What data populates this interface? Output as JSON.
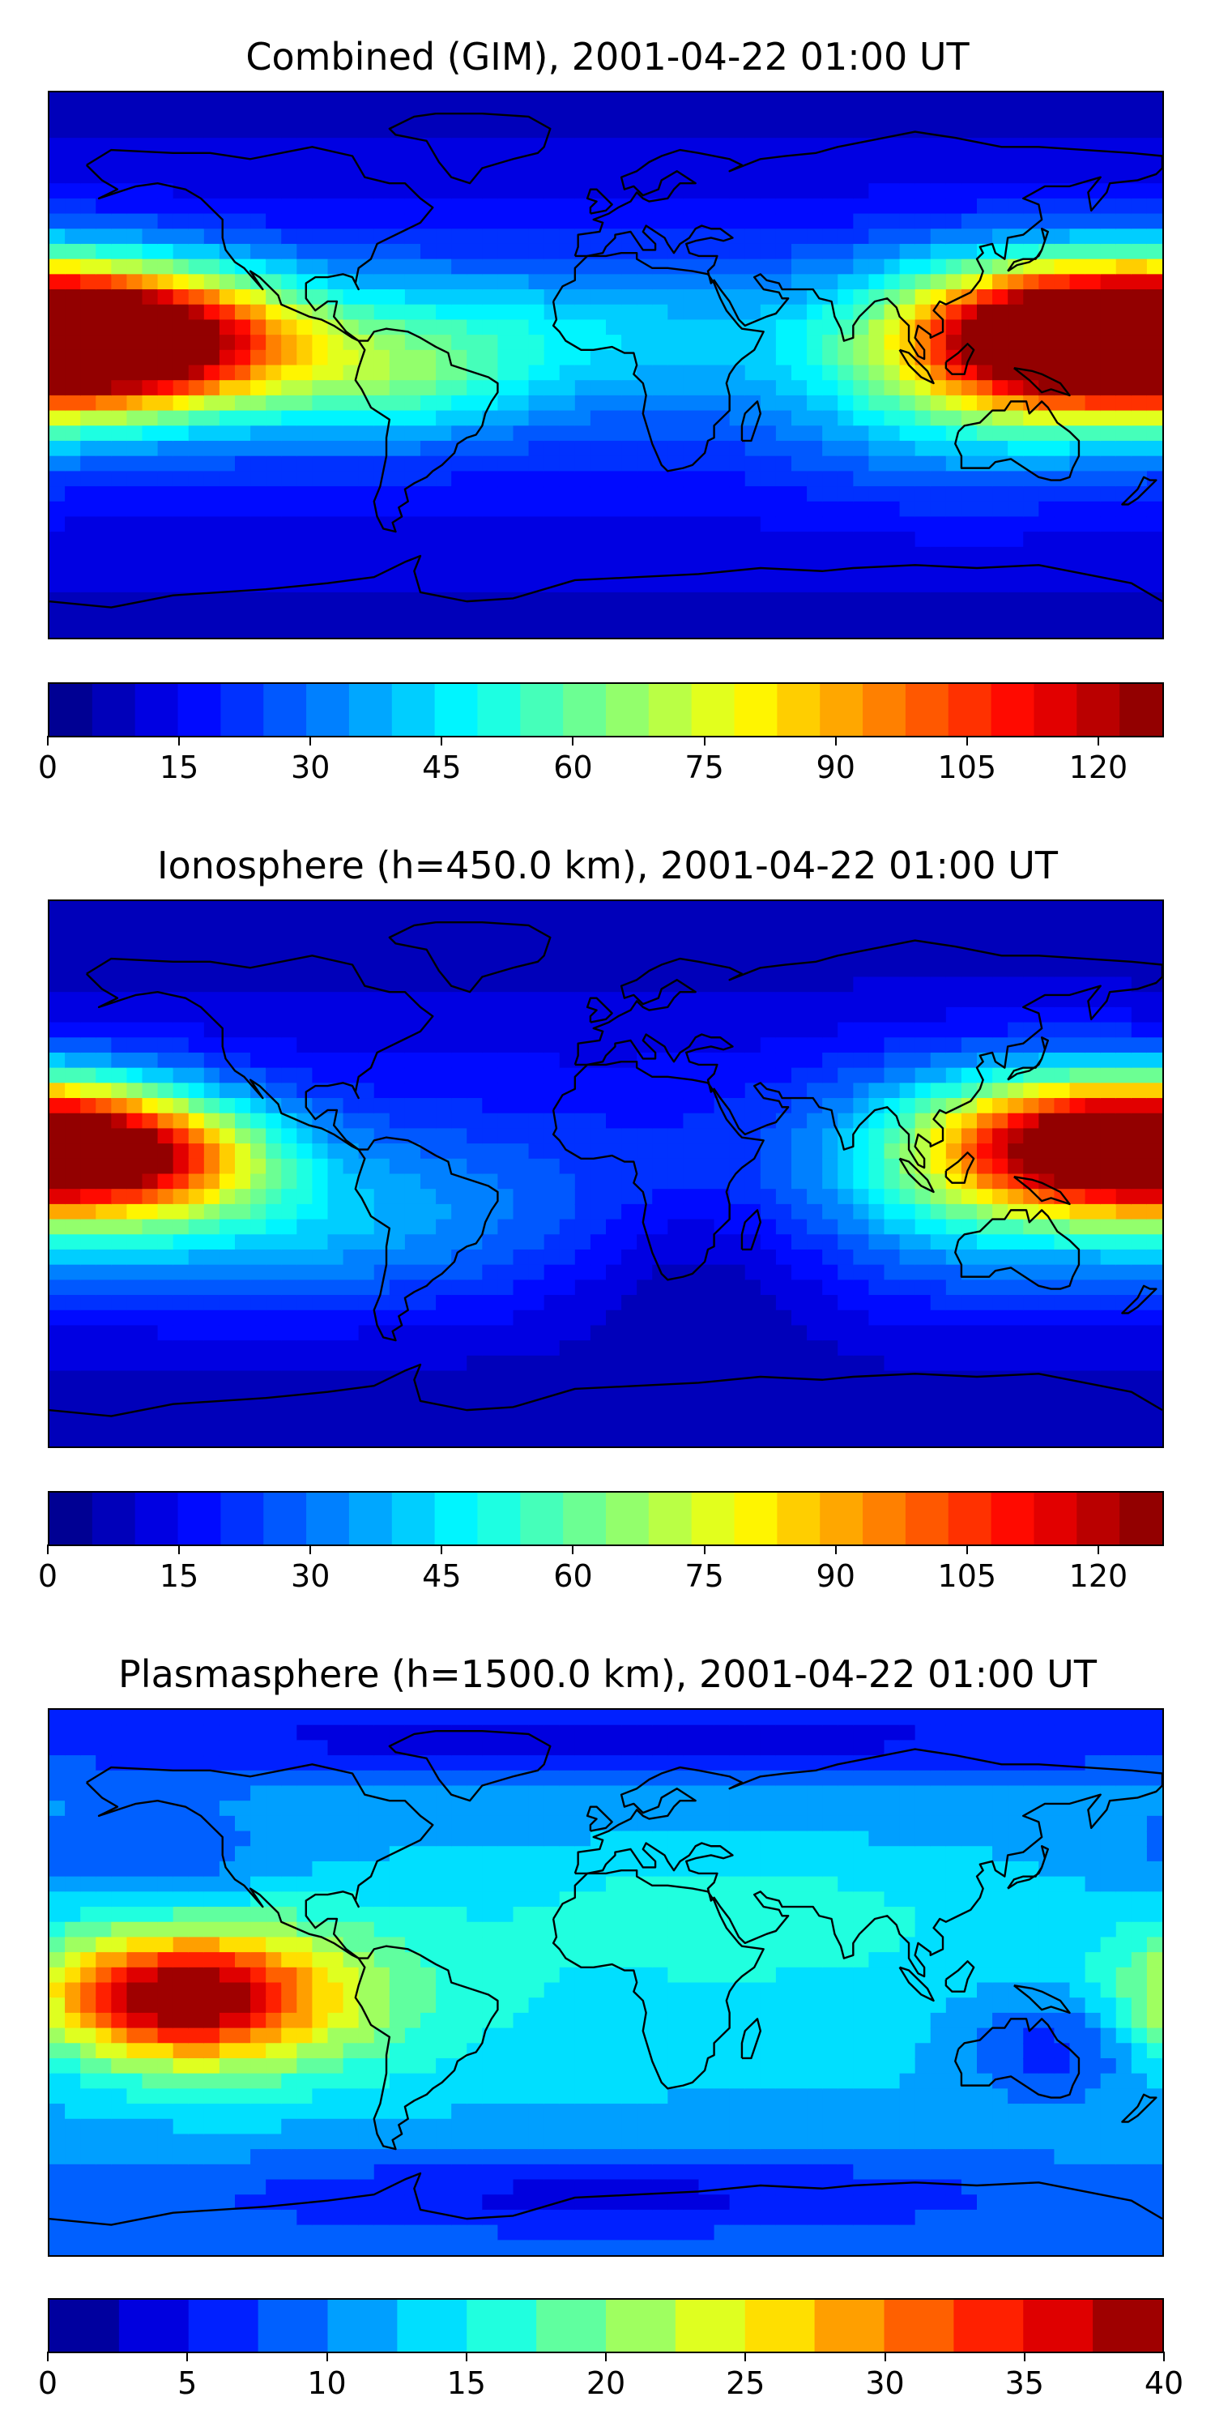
{
  "panels": [
    {
      "title": "Combined (GIM), 2001-04-22 01:00 UT",
      "cbar": {
        "min": 0,
        "max": 127.5,
        "levels": 26,
        "tick_values": [
          0,
          15,
          30,
          45,
          60,
          75,
          90,
          105,
          120
        ],
        "tick_labels": [
          "0",
          "15",
          "30",
          "45",
          "60",
          "75",
          "90",
          "105",
          "120"
        ]
      },
      "field": {
        "background": 0.12,
        "blobs": [
          {
            "lon": -170,
            "lat": 8,
            "sx": 45,
            "sy": 18,
            "v": 0.78
          },
          {
            "lon": -140,
            "lat": 8,
            "sx": 30,
            "sy": 14,
            "v": 0.28
          },
          {
            "lon": 152,
            "lat": 10,
            "sx": 35,
            "sy": 15,
            "v": 0.62
          },
          {
            "lon": 115,
            "lat": 0,
            "sx": 40,
            "sy": 25,
            "v": 0.25
          },
          {
            "lon": -20,
            "lat": 10,
            "sx": 60,
            "sy": 18,
            "v": 0.18
          },
          {
            "lon": -70,
            "lat": -5,
            "sx": 30,
            "sy": 15,
            "v": 0.2
          }
        ]
      }
    },
    {
      "title": "Ionosphere  (h=450.0 km), 2001-04-22 01:00 UT",
      "cbar": {
        "min": 0,
        "max": 127.5,
        "levels": 26,
        "tick_values": [
          0,
          15,
          30,
          45,
          60,
          75,
          90,
          105,
          120
        ],
        "tick_labels": [
          "0",
          "15",
          "30",
          "45",
          "60",
          "75",
          "90",
          "105",
          "120"
        ]
      },
      "field": {
        "background": 0.1,
        "blobs": [
          {
            "lon": -170,
            "lat": 8,
            "sx": 35,
            "sy": 16,
            "v": 0.6
          },
          {
            "lon": -140,
            "lat": 5,
            "sx": 25,
            "sy": 12,
            "v": 0.2
          },
          {
            "lon": 152,
            "lat": 10,
            "sx": 35,
            "sy": 15,
            "v": 0.58
          },
          {
            "lon": 115,
            "lat": 0,
            "sx": 38,
            "sy": 25,
            "v": 0.2
          },
          {
            "lon": -110,
            "lat": -15,
            "sx": 70,
            "sy": 20,
            "v": 0.18
          },
          {
            "lon": 30,
            "lat": -30,
            "sx": 30,
            "sy": 20,
            "v": -0.08
          }
        ]
      }
    },
    {
      "title": "Plasmasphere (h=1500.0 km), 2001-04-22 01:00 UT",
      "cbar": {
        "min": 0,
        "max": 40,
        "levels": 16,
        "tick_values": [
          0,
          5,
          10,
          15,
          20,
          25,
          30,
          35,
          40
        ],
        "tick_labels": [
          "0",
          "5",
          "10",
          "15",
          "20",
          "25",
          "30",
          "35",
          "40"
        ]
      },
      "field": {
        "background": 0.3,
        "blobs": [
          {
            "lon": -140,
            "lat": -5,
            "sx": 30,
            "sy": 14,
            "v": 0.55
          },
          {
            "lon": -110,
            "lat": -5,
            "sx": 40,
            "sy": 20,
            "v": 0.2
          },
          {
            "lon": 145,
            "lat": -20,
            "sx": 22,
            "sy": 14,
            "v": -0.18
          },
          {
            "lon": -150,
            "lat": 40,
            "sx": 30,
            "sy": 12,
            "v": -0.12
          },
          {
            "lon": 40,
            "lat": 25,
            "sx": 50,
            "sy": 15,
            "v": 0.08
          },
          {
            "lon": 0,
            "lat": -70,
            "sx": 100,
            "sy": 10,
            "v": -0.15
          },
          {
            "lon": 0,
            "lat": 80,
            "sx": 200,
            "sy": 8,
            "v": -0.15
          }
        ]
      }
    }
  ]
}
